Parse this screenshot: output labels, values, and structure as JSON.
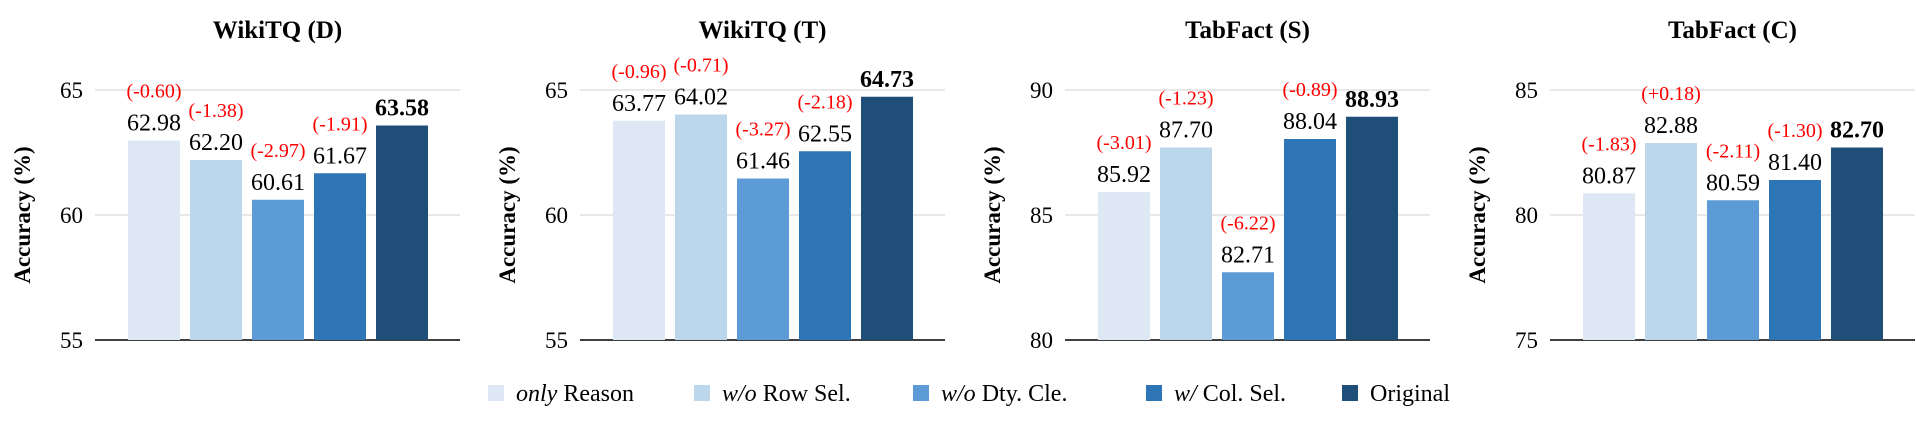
{
  "chart_data": {
    "type": "bar",
    "ylabel": "Accuracy (%)",
    "legend": [
      {
        "prefix": "only",
        "suffix": " Reason",
        "color": "#dde8f4"
      },
      {
        "prefix": "w/o",
        "suffix": " Row Sel.",
        "color": "#bcd6ec"
      },
      {
        "prefix": "w/o",
        "suffix": " Dty. Cle.",
        "color": "#5c9bd5"
      },
      {
        "prefix": "w/",
        "suffix": " Col. Sel.",
        "color": "#2e75b6"
      },
      {
        "prefix": "",
        "suffix": "Original",
        "color": "#1f4e79"
      }
    ],
    "panels": [
      {
        "title": "WikiTQ (D)",
        "ylim": [
          55,
          65
        ],
        "yticks": [
          55,
          60,
          65
        ],
        "values": [
          62.98,
          62.2,
          60.61,
          61.67,
          63.58
        ],
        "labels": [
          "62.98",
          "62.20",
          "60.61",
          "61.67",
          "63.58"
        ],
        "deltas": [
          "(-0.60)",
          "(-1.38)",
          "(-2.97)",
          "(-1.91)",
          ""
        ]
      },
      {
        "title": "WikiTQ (T)",
        "ylim": [
          55,
          65
        ],
        "yticks": [
          55,
          60,
          65
        ],
        "values": [
          63.77,
          64.02,
          61.46,
          62.55,
          64.73
        ],
        "labels": [
          "63.77",
          "64.02",
          "61.46",
          "62.55",
          "64.73"
        ],
        "deltas": [
          "(-0.96)",
          "(-0.71)",
          "(-3.27)",
          "(-2.18)",
          ""
        ]
      },
      {
        "title": "TabFact (S)",
        "ylim": [
          80,
          90
        ],
        "yticks": [
          80,
          85,
          90
        ],
        "values": [
          85.92,
          87.7,
          82.71,
          88.04,
          88.93
        ],
        "labels": [
          "85.92",
          "87.70",
          "82.71",
          "88.04",
          "88.93"
        ],
        "deltas": [
          "(-3.01)",
          "(-1.23)",
          "(-6.22)",
          "(-0.89)",
          ""
        ]
      },
      {
        "title": "TabFact (C)",
        "ylim": [
          75,
          85
        ],
        "yticks": [
          75,
          80,
          85
        ],
        "values": [
          80.87,
          82.88,
          80.59,
          81.4,
          82.7
        ],
        "labels": [
          "80.87",
          "82.88",
          "80.59",
          "81.40",
          "82.70"
        ],
        "deltas": [
          "(-1.83)",
          "(+0.18)",
          "(-2.11)",
          "(-1.30)",
          ""
        ]
      }
    ]
  }
}
